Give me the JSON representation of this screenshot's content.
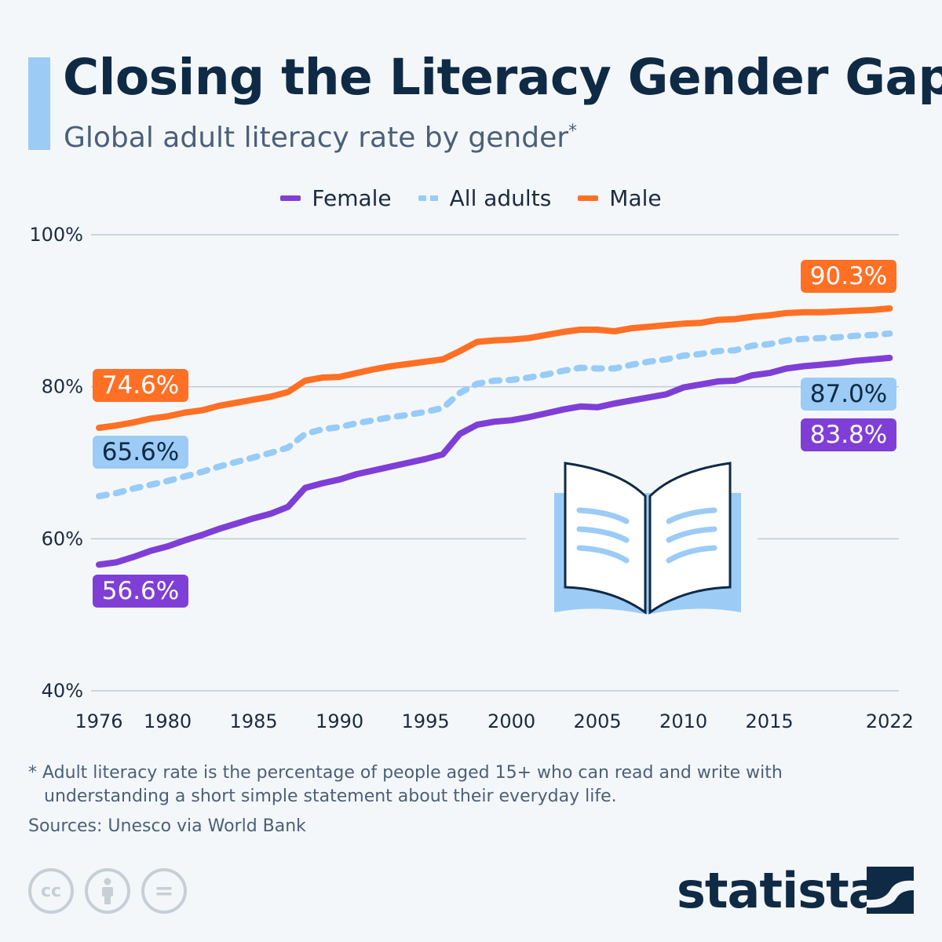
{
  "title": "Closing the Literacy Gender Gap",
  "subtitle": "Global adult literacy rate by gender",
  "subtitle_mark": "*",
  "legend": [
    {
      "label": "Female",
      "color": "#7f3fd6"
    },
    {
      "label": "All adults",
      "color": "#97cbf8"
    },
    {
      "label": "Male",
      "color": "#ff7025"
    }
  ],
  "labels": {
    "male_start": "74.6%",
    "all_start": "65.6%",
    "female_start": "56.6%",
    "male_end": "90.3%",
    "all_end": "87.0%",
    "female_end": "83.8%"
  },
  "footnote": {
    "line1": "* Adult literacy rate is the percentage of people aged 15+ who can read and write with",
    "line2": "understanding a short simple statement about their everyday life."
  },
  "source": "Sources: Unesco via World Bank",
  "license_icons": [
    "cc-icon",
    "attribution-icon",
    "no-derivatives-icon"
  ],
  "license_text": {
    "cc": "cc",
    "nd": "="
  },
  "brand": "statista",
  "chart_data": {
    "type": "line",
    "title": "Closing the Literacy Gender Gap",
    "ylim": [
      40,
      100
    ],
    "yticks": [
      "40%",
      "60%",
      "80%",
      "100%"
    ],
    "ytick_values": [
      40,
      60,
      80,
      100
    ],
    "xticks": [
      1976,
      1980,
      1985,
      1990,
      1995,
      2000,
      2005,
      2010,
      2015,
      2022
    ],
    "grid": true,
    "legend_position": "top",
    "x": [
      1976,
      1977,
      1978,
      1979,
      1980,
      1981,
      1982,
      1983,
      1984,
      1985,
      1986,
      1987,
      1988,
      1989,
      1990,
      1991,
      1992,
      1993,
      1994,
      1995,
      1996,
      1997,
      1998,
      1999,
      2000,
      2001,
      2002,
      2003,
      2004,
      2005,
      2006,
      2007,
      2008,
      2009,
      2010,
      2011,
      2012,
      2013,
      2014,
      2015,
      2016,
      2017,
      2018,
      2019,
      2020,
      2021,
      2022
    ],
    "series": [
      {
        "name": "Female",
        "color": "#7f3fd6",
        "dashed": false,
        "values": [
          56.6,
          56.9,
          57.6,
          58.4,
          59.0,
          59.8,
          60.5,
          61.3,
          62.0,
          62.7,
          63.3,
          64.2,
          66.7,
          67.3,
          67.8,
          68.5,
          69.0,
          69.5,
          70.0,
          70.5,
          71.1,
          73.8,
          75.0,
          75.4,
          75.6,
          76.0,
          76.5,
          77.0,
          77.4,
          77.3,
          77.8,
          78.2,
          78.6,
          79.0,
          79.9,
          80.3,
          80.7,
          80.8,
          81.5,
          81.8,
          82.4,
          82.7,
          82.9,
          83.1,
          83.4,
          83.6,
          83.8
        ]
      },
      {
        "name": "All adults",
        "color": "#97cbf8",
        "dashed": true,
        "values": [
          65.6,
          66.0,
          66.6,
          67.1,
          67.6,
          68.2,
          68.8,
          69.5,
          70.1,
          70.7,
          71.3,
          72.0,
          73.8,
          74.4,
          74.7,
          75.2,
          75.6,
          76.0,
          76.3,
          76.7,
          77.2,
          79.2,
          80.4,
          80.8,
          80.9,
          81.2,
          81.6,
          82.1,
          82.5,
          82.4,
          82.4,
          82.9,
          83.3,
          83.6,
          84.1,
          84.3,
          84.7,
          84.8,
          85.4,
          85.6,
          86.1,
          86.3,
          86.4,
          86.5,
          86.7,
          86.8,
          87.0
        ]
      },
      {
        "name": "Male",
        "color": "#ff7025",
        "dashed": false,
        "values": [
          74.6,
          74.9,
          75.3,
          75.8,
          76.1,
          76.6,
          76.9,
          77.5,
          77.9,
          78.3,
          78.7,
          79.3,
          80.8,
          81.2,
          81.3,
          81.8,
          82.3,
          82.7,
          83.0,
          83.3,
          83.6,
          84.7,
          85.9,
          86.1,
          86.2,
          86.4,
          86.8,
          87.2,
          87.5,
          87.5,
          87.3,
          87.7,
          87.9,
          88.1,
          88.3,
          88.4,
          88.8,
          88.9,
          89.2,
          89.4,
          89.7,
          89.8,
          89.8,
          89.9,
          90.0,
          90.1,
          90.3
        ]
      }
    ]
  }
}
